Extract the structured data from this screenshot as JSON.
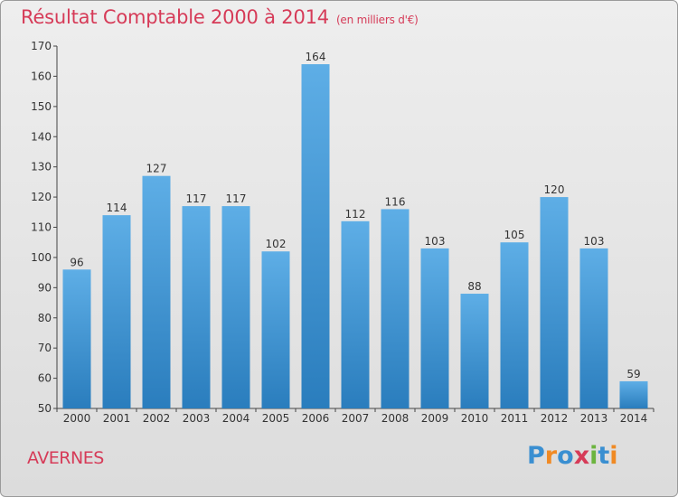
{
  "header": {
    "title": "Résultat Comptable 2000 à 2014",
    "subtitle": "(en milliers d'€)"
  },
  "footer": {
    "town": "AVERNES",
    "logo_text": "Proxiti"
  },
  "colors": {
    "accent": "#d63b58",
    "bar_light": "#5eaee6",
    "bar_dark": "#2a7dbd",
    "logo_letters": [
      "#3a8fd1",
      "#f08a24",
      "#3a8fd1",
      "#d63b58",
      "#6cb43f",
      "#3a8fd1",
      "#f08a24"
    ]
  },
  "chart_data": {
    "type": "bar",
    "title": "Résultat Comptable 2000 à 2014",
    "subtitle": "(en milliers d'€)",
    "categories": [
      "2000",
      "2001",
      "2002",
      "2003",
      "2004",
      "2005",
      "2006",
      "2007",
      "2008",
      "2009",
      "2010",
      "2011",
      "2012",
      "2013",
      "2014"
    ],
    "values": [
      96,
      114,
      127,
      117,
      117,
      102,
      164,
      112,
      116,
      103,
      88,
      105,
      120,
      103,
      59
    ],
    "ylim": [
      50,
      170
    ],
    "yticks": [
      50,
      60,
      70,
      80,
      90,
      100,
      110,
      120,
      130,
      140,
      150,
      160,
      170
    ],
    "grid": false,
    "legend": "none"
  }
}
